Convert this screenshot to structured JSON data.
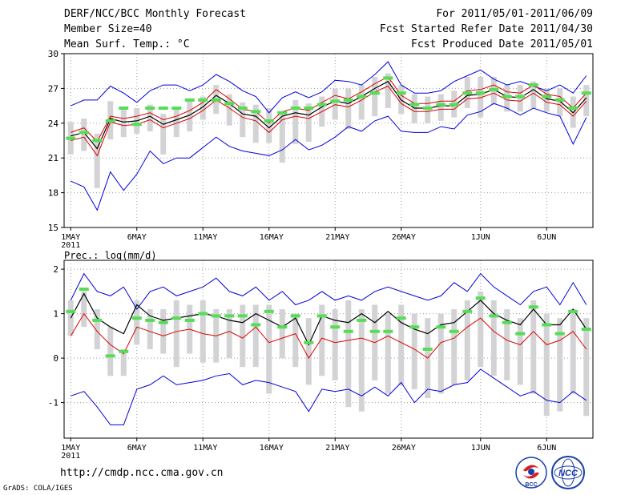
{
  "header": {
    "title": "DERF/NCC/BCC Monthly Forecast",
    "member_size": "Member Size=40",
    "variable": "Mean Surf. Temp.: °C",
    "forecast_range": "For 2011/05/01-2011/06/09",
    "refer_date": "Fcst Started Refer Date 2011/04/30",
    "produced_date": "Fcst Produced Date 2011/05/01"
  },
  "footer": {
    "url": "http://cmdp.ncc.cma.gov.cn",
    "credit": "GrADS: COLA/IGES",
    "logo_left_text": "BCC",
    "logo_right_text": "NCC"
  },
  "colors": {
    "envelope": "#0000dd",
    "lower": "#dd0000",
    "mean": "#000000",
    "box": "#d3d3d5",
    "marker": "#55dd55",
    "grid": "#9a9a9a"
  },
  "chart_data": [
    {
      "type": "line",
      "title": "Mean Surf. Temp.: °C",
      "xlabel": "",
      "ylabel": "",
      "x_tick_labels": [
        "1MAY",
        "6MAY",
        "11MAY",
        "16MAY",
        "21MAY",
        "26MAY",
        "1JUN",
        "6JUN"
      ],
      "x_tick_days": [
        1,
        6,
        11,
        16,
        21,
        26,
        32,
        37
      ],
      "year_label": "2011",
      "xlim": [
        0.5,
        40.5
      ],
      "ylim": [
        15,
        30
      ],
      "yticks": [
        15,
        18,
        21,
        24,
        27,
        30
      ],
      "grid": true,
      "days": [
        1,
        2,
        3,
        4,
        5,
        6,
        7,
        8,
        9,
        10,
        11,
        12,
        13,
        14,
        15,
        16,
        17,
        18,
        19,
        20,
        21,
        22,
        23,
        24,
        25,
        26,
        27,
        28,
        29,
        30,
        31,
        32,
        33,
        34,
        35,
        36,
        37,
        38,
        39,
        40
      ],
      "series": [
        {
          "name": "upper envelope",
          "color": "blue",
          "values": [
            25.5,
            26,
            26,
            27.2,
            26.6,
            25.8,
            26.8,
            27.3,
            27.3,
            26.8,
            27.3,
            28.2,
            27.6,
            26.8,
            26.3,
            24.9,
            26.2,
            26.7,
            26.2,
            26.7,
            27.7,
            27.6,
            27.3,
            28.2,
            29.3,
            27.3,
            26.6,
            26.6,
            26.8,
            27.6,
            28.1,
            28.6,
            27.8,
            27.3,
            27.6,
            27.2,
            26.8,
            27.3,
            26.6,
            28.1
          ]
        },
        {
          "name": "ensemble mean",
          "color": "black",
          "values": [
            22.9,
            23.2,
            21.8,
            24.4,
            24.1,
            24.2,
            24.6,
            23.9,
            24.3,
            24.7,
            25.4,
            26.4,
            25.7,
            24.8,
            24.6,
            23.6,
            24.6,
            24.9,
            24.7,
            25.4,
            25.9,
            25.7,
            26.3,
            27.0,
            27.6,
            26.0,
            25.3,
            25.3,
            25.5,
            25.5,
            26.4,
            26.5,
            26.9,
            26.3,
            26.2,
            26.9,
            26.1,
            25.9,
            24.9,
            26.2
          ]
        },
        {
          "name": "upper line",
          "color": "red",
          "values": [
            23.2,
            23.6,
            22.4,
            24.6,
            24.4,
            24.6,
            24.9,
            24.3,
            24.6,
            25.1,
            25.8,
            26.9,
            26.1,
            25.2,
            25.0,
            24.0,
            25.0,
            25.3,
            25.1,
            25.8,
            26.4,
            26.1,
            26.7,
            27.4,
            28.0,
            26.4,
            25.7,
            25.7,
            25.9,
            25.9,
            26.8,
            26.9,
            27.3,
            26.7,
            26.6,
            27.3,
            26.5,
            26.3,
            25.3,
            26.6
          ]
        },
        {
          "name": "lower line",
          "color": "red",
          "values": [
            22.5,
            22.8,
            21.2,
            24.1,
            23.8,
            23.9,
            24.3,
            23.6,
            24.0,
            24.4,
            25.1,
            26.0,
            25.3,
            24.5,
            24.2,
            23.2,
            24.3,
            24.6,
            24.4,
            25.0,
            25.6,
            25.4,
            26.0,
            26.7,
            27.2,
            25.7,
            25.0,
            25.0,
            25.2,
            25.2,
            26.1,
            26.2,
            26.6,
            26.0,
            25.9,
            26.6,
            25.8,
            25.6,
            24.6,
            25.9
          ]
        },
        {
          "name": "lower envelope",
          "color": "blue",
          "values": [
            19,
            18.5,
            16.5,
            19.8,
            18.2,
            19.6,
            21.6,
            20.5,
            21,
            21,
            21.9,
            22.8,
            22,
            21.6,
            21.4,
            21.2,
            21.7,
            22.6,
            21.7,
            22.1,
            22.8,
            23.7,
            23.3,
            24.2,
            24.6,
            23.3,
            23.2,
            23.2,
            23.7,
            23.5,
            24.7,
            25,
            25.7,
            25.3,
            24.7,
            25.3,
            24.9,
            24.6,
            22.2,
            24.5
          ]
        }
      ],
      "box_ranges": [
        [
          21.3,
          24.1
        ],
        [
          21.6,
          24.4
        ],
        [
          18.4,
          23.1
        ],
        [
          22.6,
          25.9
        ],
        [
          22.8,
          25.4
        ],
        [
          23.1,
          25.3
        ],
        [
          23.3,
          25.6
        ],
        [
          21.3,
          24.8
        ],
        [
          22.8,
          25.3
        ],
        [
          23.3,
          26.0
        ],
        [
          24.3,
          26.3
        ],
        [
          24.8,
          27.3
        ],
        [
          23.8,
          26.5
        ],
        [
          22.8,
          25.8
        ],
        [
          22.3,
          25.6
        ],
        [
          22.3,
          25.3
        ],
        [
          20.6,
          25.0
        ],
        [
          22.2,
          26.0
        ],
        [
          22.4,
          25.7
        ],
        [
          23.7,
          26.3
        ],
        [
          24.3,
          27.0
        ],
        [
          23.5,
          27.0
        ],
        [
          24.3,
          27.3
        ],
        [
          24.6,
          28.0
        ],
        [
          25.3,
          28.3
        ],
        [
          24.8,
          27.3
        ],
        [
          24.0,
          26.5
        ],
        [
          24.0,
          26.3
        ],
        [
          24.2,
          26.5
        ],
        [
          24.5,
          26.8
        ],
        [
          25.3,
          28.0
        ],
        [
          24.5,
          28.0
        ],
        [
          25.6,
          28.0
        ],
        [
          25.0,
          27.3
        ],
        [
          25.0,
          27.3
        ],
        [
          25.3,
          27.6
        ],
        [
          25.0,
          27.0
        ],
        [
          24.6,
          27.0
        ],
        [
          23.6,
          26.3
        ],
        [
          24.6,
          27.3
        ]
      ],
      "marker_values": [
        22.7,
        23.2,
        22.5,
        24.2,
        25.3,
        23.9,
        25.3,
        25.3,
        25.3,
        26.0,
        26.0,
        26.0,
        25.7,
        25.3,
        25.0,
        24.2,
        24.9,
        25.3,
        25.3,
        25.6,
        25.9,
        26.0,
        26.3,
        26.6,
        27.9,
        26.6,
        25.6,
        25.3,
        25.6,
        25.6,
        26.6,
        26.6,
        26.9,
        26.3,
        26.3,
        27.3,
        26.3,
        26.0,
        25.3,
        26.6
      ]
    },
    {
      "type": "line",
      "title": "Prec.: log(mm/d)",
      "xlabel": "",
      "ylabel": "",
      "x_tick_labels": [
        "1MAY",
        "6MAY",
        "11MAY",
        "16MAY",
        "21MAY",
        "26MAY",
        "1JUN",
        "6JUN"
      ],
      "x_tick_days": [
        1,
        6,
        11,
        16,
        21,
        26,
        32,
        37
      ],
      "year_label": "2011",
      "xlim": [
        0.5,
        40.5
      ],
      "ylim": [
        -1.8,
        2.2
      ],
      "yticks": [
        -1,
        0,
        1,
        2
      ],
      "grid": true,
      "days": [
        1,
        2,
        3,
        4,
        5,
        6,
        7,
        8,
        9,
        10,
        11,
        12,
        13,
        14,
        15,
        16,
        17,
        18,
        19,
        20,
        21,
        22,
        23,
        24,
        25,
        26,
        27,
        28,
        29,
        30,
        31,
        32,
        33,
        34,
        35,
        36,
        37,
        38,
        39,
        40
      ],
      "series": [
        {
          "name": "upper envelope",
          "color": "blue",
          "values": [
            1.3,
            1.9,
            1.5,
            1.4,
            1.6,
            1.1,
            1.5,
            1.6,
            1.4,
            1.5,
            1.6,
            1.8,
            1.5,
            1.4,
            1.6,
            1.3,
            1.5,
            1.2,
            1.3,
            1.5,
            1.3,
            1.4,
            1.3,
            1.5,
            1.6,
            1.5,
            1.4,
            1.3,
            1.4,
            1.7,
            1.5,
            1.9,
            1.6,
            1.4,
            1.2,
            1.5,
            1.6,
            1.2,
            1.7,
            1.2
          ]
        },
        {
          "name": "ensemble mean",
          "color": "black",
          "values": [
            0.9,
            1.45,
            0.9,
            0.7,
            0.55,
            1.2,
            0.95,
            0.85,
            0.9,
            0.95,
            1.0,
            0.95,
            0.85,
            0.8,
            1.0,
            0.85,
            0.7,
            0.9,
            0.3,
            0.95,
            0.85,
            0.8,
            1.0,
            0.8,
            1.05,
            0.8,
            0.65,
            0.55,
            0.75,
            0.8,
            1.05,
            1.3,
            1.0,
            0.85,
            0.75,
            1.1,
            0.75,
            0.75,
            1.1,
            0.65
          ]
        },
        {
          "name": "lower line",
          "color": "red",
          "values": [
            0.5,
            1.0,
            0.6,
            0.3,
            0.1,
            0.7,
            0.6,
            0.5,
            0.6,
            0.65,
            0.55,
            0.5,
            0.6,
            0.45,
            0.7,
            0.35,
            0.45,
            0.55,
            0.0,
            0.45,
            0.35,
            0.4,
            0.45,
            0.35,
            0.5,
            0.35,
            0.2,
            0.0,
            0.35,
            0.45,
            0.7,
            0.9,
            0.6,
            0.4,
            0.3,
            0.6,
            0.3,
            0.4,
            0.6,
            0.2
          ]
        },
        {
          "name": "lower envelope",
          "color": "blue",
          "values": [
            -0.85,
            -0.75,
            -1.1,
            -1.5,
            -1.5,
            -0.7,
            -0.6,
            -0.4,
            -0.6,
            -0.55,
            -0.5,
            -0.4,
            -0.35,
            -0.6,
            -0.5,
            -0.55,
            -0.65,
            -0.75,
            -1.2,
            -0.7,
            -0.75,
            -0.7,
            -0.85,
            -0.65,
            -0.85,
            -0.55,
            -1.0,
            -0.7,
            -0.75,
            -0.6,
            -0.55,
            -0.25,
            -0.45,
            -0.65,
            -0.85,
            -0.75,
            -0.95,
            -1.0,
            -0.75,
            -0.95
          ]
        }
      ],
      "box_ranges": [
        [
          0.5,
          1.3
        ],
        [
          0.7,
          1.5
        ],
        [
          0.2,
          1.1
        ],
        [
          -0.4,
          0.7
        ],
        [
          -0.4,
          0.2
        ],
        [
          0.3,
          1.3
        ],
        [
          0.2,
          1.1
        ],
        [
          0.1,
          1.1
        ],
        [
          -0.2,
          1.3
        ],
        [
          0.1,
          1.2
        ],
        [
          -0.1,
          1.3
        ],
        [
          -0.1,
          1.1
        ],
        [
          0.0,
          1.1
        ],
        [
          -0.2,
          1.2
        ],
        [
          -0.2,
          1.2
        ],
        [
          -0.8,
          1.2
        ],
        [
          0.0,
          1.1
        ],
        [
          -0.2,
          1.0
        ],
        [
          -0.6,
          0.9
        ],
        [
          -0.4,
          1.2
        ],
        [
          -0.5,
          1.1
        ],
        [
          -1.1,
          1.3
        ],
        [
          -1.2,
          1.1
        ],
        [
          -0.5,
          1.2
        ],
        [
          -0.8,
          1.0
        ],
        [
          -0.6,
          1.2
        ],
        [
          -0.7,
          1.0
        ],
        [
          -0.9,
          0.9
        ],
        [
          -0.8,
          1.0
        ],
        [
          -0.6,
          1.1
        ],
        [
          -0.5,
          1.3
        ],
        [
          -0.2,
          1.5
        ],
        [
          -0.4,
          1.3
        ],
        [
          -0.5,
          1.1
        ],
        [
          -0.6,
          0.9
        ],
        [
          -0.8,
          1.3
        ],
        [
          -1.3,
          1.0
        ],
        [
          -1.2,
          0.9
        ],
        [
          -0.8,
          1.1
        ],
        [
          -1.3,
          0.9
        ]
      ],
      "marker_values": [
        1.05,
        1.55,
        0.85,
        0.05,
        0.15,
        0.9,
        0.85,
        0.8,
        0.9,
        0.85,
        1.0,
        0.95,
        0.95,
        0.95,
        0.75,
        1.05,
        0.7,
        0.95,
        0.35,
        0.95,
        0.7,
        0.6,
        0.85,
        0.6,
        0.6,
        0.9,
        0.7,
        0.2,
        0.7,
        0.6,
        1.05,
        1.35,
        0.95,
        0.8,
        0.55,
        1.15,
        0.75,
        0.55,
        1.05,
        0.65
      ]
    }
  ]
}
